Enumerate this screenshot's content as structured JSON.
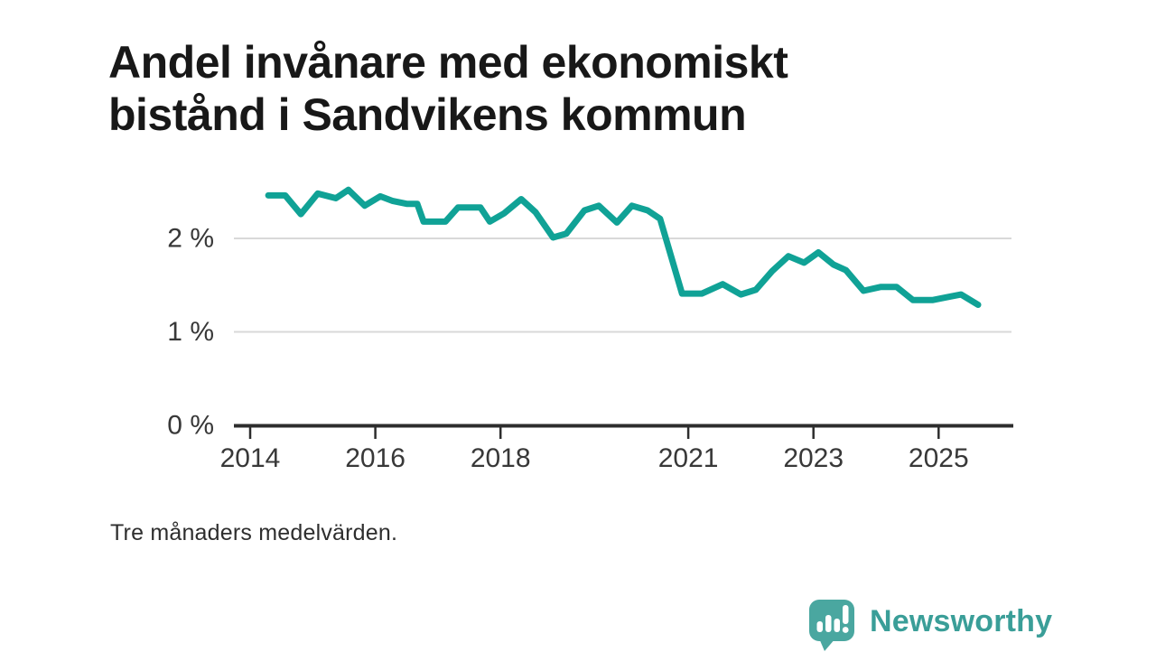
{
  "header": {
    "title_line1": "Andel invånare med ekonomiskt",
    "title_line2": "bistånd i Sandvikens kommun"
  },
  "footer": {
    "note": "Tre månaders medelvärden.",
    "brand": {
      "name": "Newsworthy",
      "icon": "bar-chart-speech-bubble-icon",
      "badge_color": "#4AA7A0",
      "text_color": "#3A9E98"
    }
  },
  "colors": {
    "line": "#10A296",
    "gridline": "#d9d9d9",
    "axis": "#2d2d2d",
    "tick_text": "#383838",
    "title_text": "#181818"
  },
  "chart_data": {
    "type": "line",
    "title": "Andel invånare med ekonomiskt bistånd i Sandvikens kommun",
    "note": "Tre månaders medelvärden.",
    "unit": "%",
    "grid": true,
    "legend": "none",
    "line_color": "#10A296",
    "ylim": [
      0,
      2.75
    ],
    "xlim": [
      2013.74,
      2026.19
    ],
    "y_ticks": [
      {
        "value": 0,
        "label": "0 %"
      },
      {
        "value": 1,
        "label": "1 %"
      },
      {
        "value": 2,
        "label": "2 %"
      }
    ],
    "x_ticks": [
      {
        "value": 2014,
        "label": "2014"
      },
      {
        "value": 2016,
        "label": "2016"
      },
      {
        "value": 2018,
        "label": "2018"
      },
      {
        "value": 2021,
        "label": "2021"
      },
      {
        "value": 2023,
        "label": "2023"
      },
      {
        "value": 2025,
        "label": "2025"
      }
    ],
    "series": [
      {
        "name": "Andel invånare med ekonomiskt bistånd",
        "points": [
          [
            2014.29,
            2.46
          ],
          [
            2014.56,
            2.46
          ],
          [
            2014.81,
            2.26
          ],
          [
            2015.08,
            2.48
          ],
          [
            2015.37,
            2.43
          ],
          [
            2015.57,
            2.52
          ],
          [
            2015.83,
            2.35
          ],
          [
            2016.08,
            2.45
          ],
          [
            2016.28,
            2.4
          ],
          [
            2016.5,
            2.37
          ],
          [
            2016.67,
            2.37
          ],
          [
            2016.77,
            2.18
          ],
          [
            2017.12,
            2.18
          ],
          [
            2017.32,
            2.33
          ],
          [
            2017.68,
            2.33
          ],
          [
            2017.83,
            2.18
          ],
          [
            2018.06,
            2.27
          ],
          [
            2018.33,
            2.42
          ],
          [
            2018.56,
            2.28
          ],
          [
            2018.84,
            2.01
          ],
          [
            2019.05,
            2.05
          ],
          [
            2019.34,
            2.3
          ],
          [
            2019.57,
            2.35
          ],
          [
            2019.86,
            2.17
          ],
          [
            2020.1,
            2.35
          ],
          [
            2020.35,
            2.3
          ],
          [
            2020.55,
            2.21
          ],
          [
            2020.9,
            1.41
          ],
          [
            2021.22,
            1.41
          ],
          [
            2021.55,
            1.51
          ],
          [
            2021.84,
            1.4
          ],
          [
            2022.08,
            1.45
          ],
          [
            2022.34,
            1.65
          ],
          [
            2022.6,
            1.81
          ],
          [
            2022.85,
            1.74
          ],
          [
            2023.08,
            1.85
          ],
          [
            2023.32,
            1.72
          ],
          [
            2023.52,
            1.66
          ],
          [
            2023.8,
            1.44
          ],
          [
            2024.07,
            1.48
          ],
          [
            2024.33,
            1.48
          ],
          [
            2024.59,
            1.34
          ],
          [
            2024.9,
            1.34
          ],
          [
            2025.2,
            1.38
          ],
          [
            2025.36,
            1.4
          ],
          [
            2025.63,
            1.29
          ]
        ]
      }
    ]
  }
}
